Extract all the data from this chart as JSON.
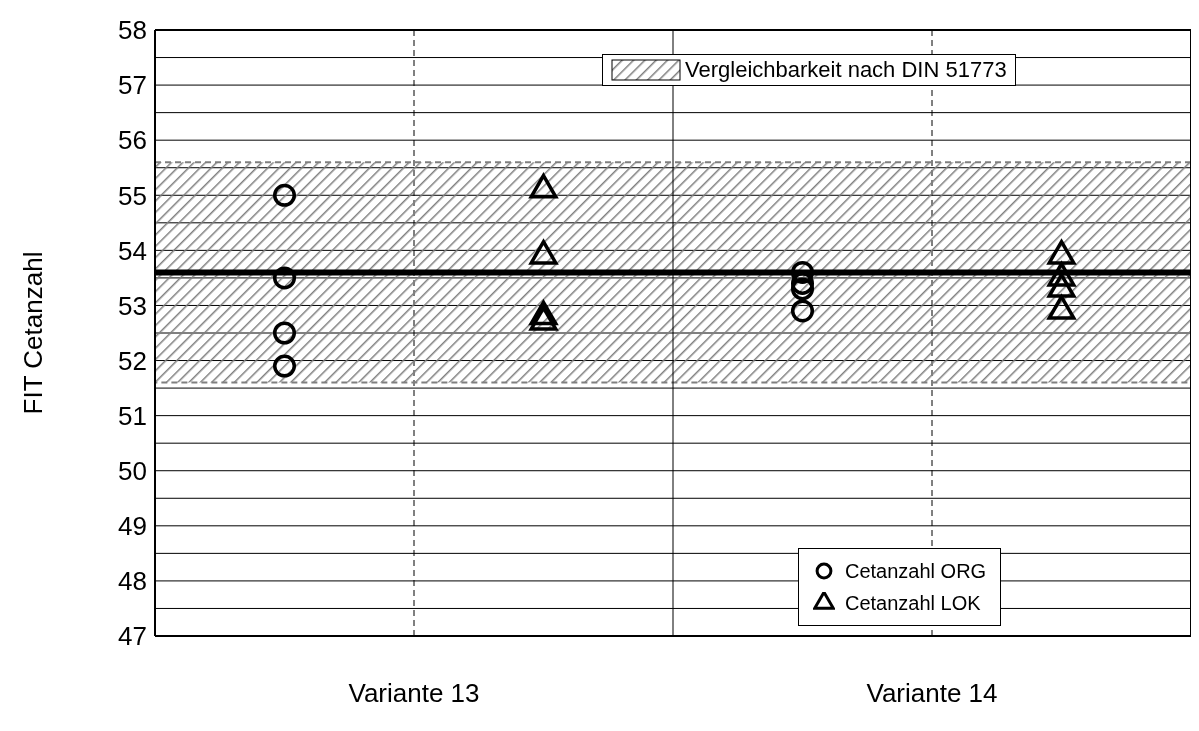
{
  "chart_data": {
    "type": "scatter",
    "ylabel": "FIT Cetanzahl",
    "categories": [
      "Variante 13",
      "Variante 14"
    ],
    "series": [
      {
        "name": "Cetanzahl ORG",
        "color": "#000000",
        "marker": "circle",
        "x": [
          "Variante 13",
          "Variante 13",
          "Variante 13",
          "Variante 13",
          "Variante 14",
          "Variante 14",
          "Variante 14",
          "Variante 14"
        ],
        "values": [
          55.0,
          53.5,
          52.5,
          51.9,
          53.6,
          53.4,
          53.3,
          52.9
        ]
      },
      {
        "name": "Cetanzahl LOK",
        "color": "#000000",
        "marker": "triangle",
        "x": [
          "Variante 13",
          "Variante 13",
          "Variante 13",
          "Variante 13",
          "Variante 14",
          "Variante 14",
          "Variante 14",
          "Variante 14"
        ],
        "values": [
          55.1,
          53.9,
          52.8,
          52.7,
          53.9,
          53.5,
          53.3,
          52.9
        ]
      }
    ],
    "ylim": [
      47,
      58
    ],
    "yticks": [
      47,
      {
        "value": 47.5,
        "label": null
      },
      48,
      {
        "value": 48.5,
        "label": null
      },
      49,
      {
        "value": 49.5,
        "label": null
      },
      50,
      {
        "value": 50.5,
        "label": null
      },
      51,
      {
        "value": 51.5,
        "label": null
      },
      52,
      {
        "value": 52.5,
        "label": null
      },
      53,
      {
        "value": 53.5,
        "label": null
      },
      54,
      {
        "value": 54.5,
        "label": null
      },
      55,
      {
        "value": 55.5,
        "label": null
      },
      56,
      {
        "value": 56.5,
        "label": null
      },
      57,
      {
        "value": 57.5,
        "label": null
      },
      58
    ],
    "ref_lines": [
      {
        "axis": "y",
        "value": 53.6,
        "color": "#000000"
      }
    ],
    "bands": [
      {
        "axis": "y",
        "from": 51.6,
        "to": 55.6,
        "label": "Vergleichbarkeit nach DIN 51773",
        "color": "#808080"
      }
    ],
    "grid": true,
    "legend": "bottom right"
  }
}
